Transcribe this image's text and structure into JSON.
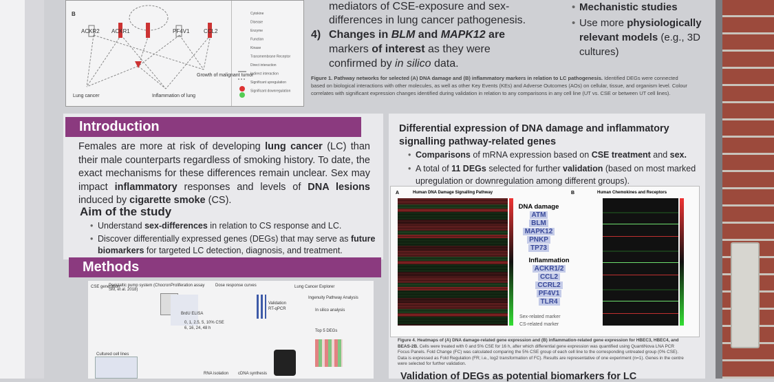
{
  "network_figure": {
    "panel": "B",
    "nodes": [
      "ACKR2",
      "ACKR1",
      "PF4V1",
      "CCL2",
      "Lung cancer",
      "Inflammation of lung",
      "Growth of malignant tumor"
    ],
    "legend": [
      "Cytokine",
      "Disease",
      "Enzyme",
      "Function",
      "Kinase",
      "Transmembrane Receptor",
      "Direct interaction",
      "Indirect interaction",
      "Significant upregulation",
      "Significant downregulation"
    ]
  },
  "conclusions": {
    "item3_tail": [
      {
        "t": "mediators of CSE-exposure and sex-differences in lung cancer pathogenesis."
      }
    ],
    "item4_number": "4)",
    "item4": [
      {
        "t": "Changes in ",
        "b": true
      },
      {
        "t": "BLM",
        "b": true,
        "i": true
      },
      {
        "t": " and ",
        "b": true
      },
      {
        "t": "MAPK12",
        "b": true,
        "i": true
      },
      {
        "t": " are",
        "b": true
      },
      {
        "t": " markers "
      },
      {
        "t": "of interest",
        "b": true
      },
      {
        "t": " as they were confirmed by "
      },
      {
        "t": "in silico",
        "i": true
      },
      {
        "t": " data."
      }
    ]
  },
  "future": [
    [
      {
        "t": "Mechanistic studies",
        "b": true
      }
    ],
    [
      {
        "t": "Use more "
      },
      {
        "t": "physiologically relevant models",
        "b": true
      },
      {
        "t": " (e.g., 3D cultures)"
      }
    ]
  ],
  "figure1_caption": [
    {
      "t": "Figure 1. Pathway networks for selected (A) DNA damage and (B) inflammatory markers in relation to LC pathogenesis.",
      "b": true
    },
    {
      "t": " Identified DEGs were connected based on biological interactions with other molecules, as well as other Key Events (KEs) and Adverse Outcomes (AOs) on cellular, tissue, and organism level. Colour correlates with significant expression changes identified during validation in relation to any comparisons in any cell line (UT vs. CSE or between UT cell lines)."
    }
  ],
  "introduction": {
    "heading": "Introduction",
    "paragraph": [
      {
        "t": "Females are more at risk of developing "
      },
      {
        "t": "lung cancer",
        "b": true
      },
      {
        "t": " (LC) than their male counterparts regardless of smoking history. To date, the exact mechanisms for these differences remain unclear. Sex may impact "
      },
      {
        "t": "inflammatory",
        "b": true
      },
      {
        "t": " responses and levels of "
      },
      {
        "t": "DNA lesions",
        "b": true
      },
      {
        "t": " induced by "
      },
      {
        "t": "cigarette smoke",
        "b": true
      },
      {
        "t": " (CS)."
      }
    ],
    "aim_heading": "Aim of the study",
    "aims": [
      [
        {
          "t": "Understand "
        },
        {
          "t": "sex-differences",
          "b": true
        },
        {
          "t": " in relation to CS response and LC."
        }
      ],
      [
        {
          "t": "Discover differentially expressed genes (DEGs) that may serve as "
        },
        {
          "t": "future biomarkers",
          "b": true
        },
        {
          "t": " for targeted LC detection, diagnosis, and treatment."
        }
      ]
    ]
  },
  "methods": {
    "heading": "Methods",
    "labels": [
      "CSE generation",
      "Peristaltic pump system (Chocron SM, et al. 2018)",
      "Proliferation assay",
      "BrdU ELISA",
      "0, 1, 2.5, 5, 10% CSE",
      "6, 16, 24, 48 h",
      "Dose response curves",
      "Lung Cancer Explorer",
      "Ingenuity Pathway Analysis",
      "In silico analysis",
      "Validation",
      "RT-qPCR",
      "Top 5 DEGs",
      "Cultured cell lines",
      "RNA isolation",
      "cDNA synthesis"
    ]
  },
  "results": {
    "heading": "Differential expression of DNA damage and inflammatory signalling pathway-related genes",
    "bullets": [
      [
        {
          "t": "Comparisons",
          "b": true
        },
        {
          "t": " of mRNA expression based on "
        },
        {
          "t": "CSE treatment",
          "b": true
        },
        {
          "t": " and "
        },
        {
          "t": "sex.",
          "b": true
        }
      ],
      [
        {
          "t": "A total of "
        },
        {
          "t": "11 DEGs",
          "b": true
        },
        {
          "t": " selected for further "
        },
        {
          "t": "validation",
          "b": true
        },
        {
          "t": " (based on most marked upregulation or downregulation among different groups)."
        }
      ]
    ],
    "heatmap": {
      "panel_a": "A",
      "panel_a_title": "Human DNA Damage Signalling Pathway",
      "panel_b": "B",
      "panel_b_title": "Human Chemokines and Receptors",
      "dna_heading": "DNA damage",
      "dna_genes": [
        "ATM",
        "BLM",
        "MAPK12",
        "PNKP",
        "TP73"
      ],
      "inflam_heading": "Inflammation",
      "inflam_genes": [
        "ACKR1/2",
        "CCL2",
        "CCRL2",
        "PF4V1",
        "TLR4"
      ],
      "legend": [
        "Sex-related marker",
        "CS-related marker"
      ]
    },
    "figure4_caption": [
      {
        "t": "Figure 4. Heatmaps of (A) DNA damage-related gene expression and (B) inflammation-related gene expression for HBEC3, HBEC4, and BEAS-2B.",
        "b": true
      },
      {
        "t": " Cells were treated with 0 and 5% CSE for 16 h, after which differential gene expression was quantified using QuantiNova LNA PCR Focus Panels. Fold Change (FC) was calculated comparing the 5% CSE group of each cell line to the corresponding untreated group (0% CSE). Data is expressed as Fold Regulation (FR; i.e., log2 transformation of FC). Results are representative of one experiment (n=1). Genes in the centre were selected for further validation."
      }
    ],
    "next_heading": "Validation of DEGs as potential biomarkers for LC"
  }
}
